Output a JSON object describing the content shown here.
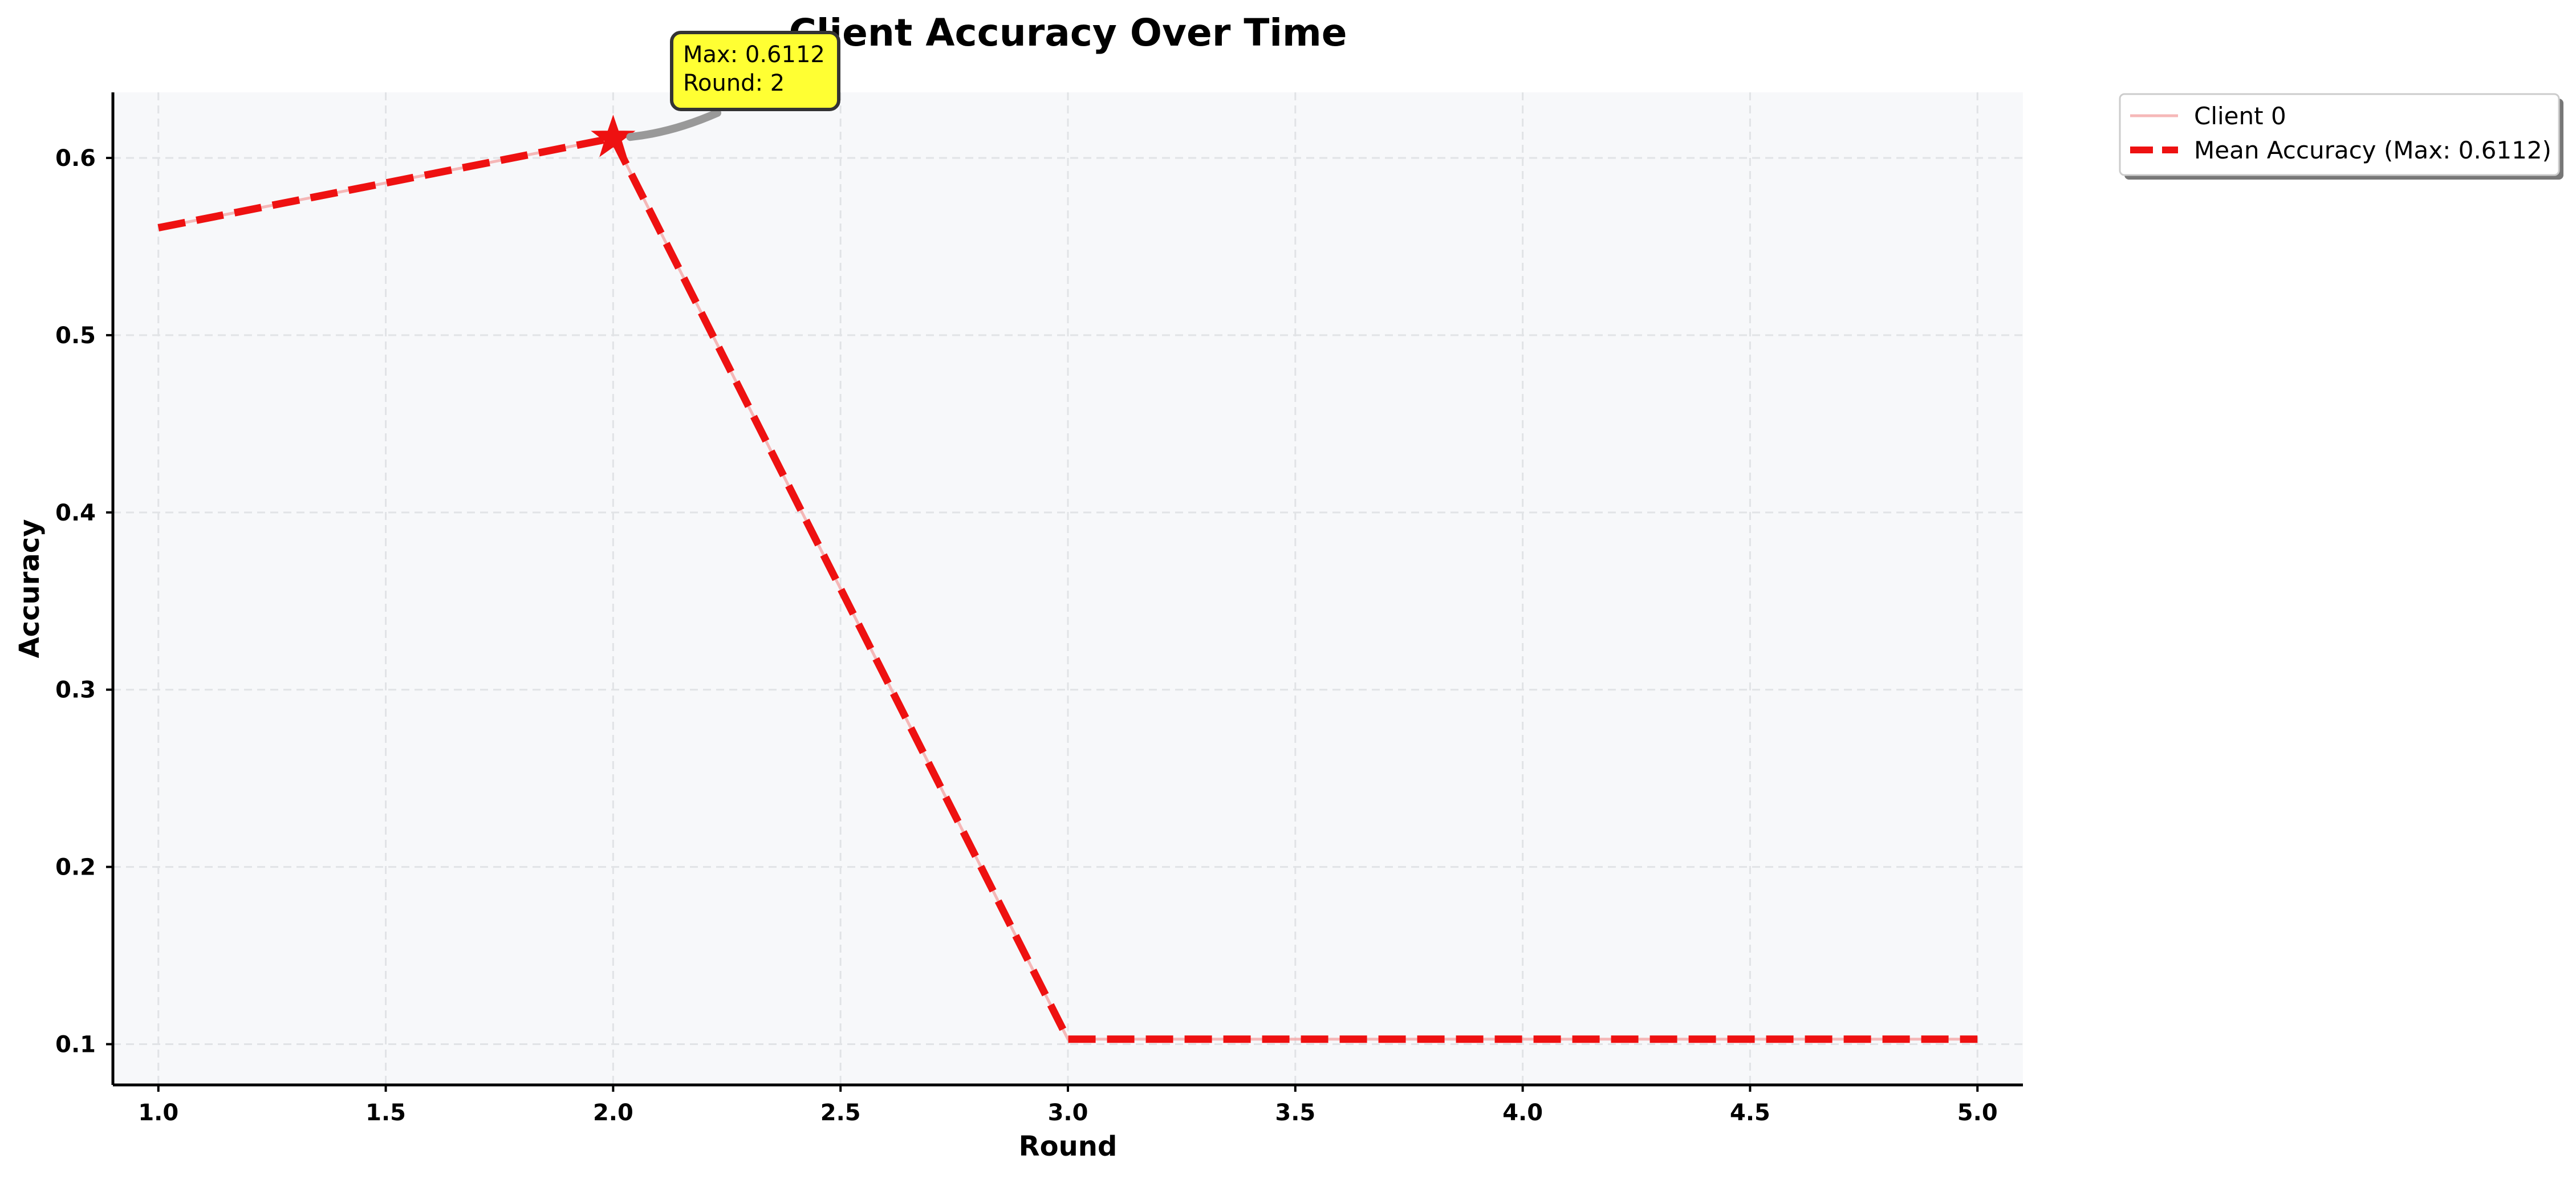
{
  "chart_data": {
    "type": "line",
    "title": "Client Accuracy Over Time",
    "xlabel": "Round",
    "ylabel": "Accuracy",
    "xlim": [
      0.9,
      5.1
    ],
    "ylim": [
      0.077,
      0.637
    ],
    "xticks": [
      1.0,
      1.5,
      2.0,
      2.5,
      3.0,
      3.5,
      4.0,
      4.5,
      5.0
    ],
    "xtick_labels": [
      "1.0",
      "1.5",
      "2.0",
      "2.5",
      "3.0",
      "3.5",
      "4.0",
      "4.5",
      "5.0"
    ],
    "yticks": [
      0.1,
      0.2,
      0.3,
      0.4,
      0.5,
      0.6
    ],
    "ytick_labels": [
      "0.1",
      "0.2",
      "0.3",
      "0.4",
      "0.5",
      "0.6"
    ],
    "grid": true,
    "legend_position": "outside top-right",
    "series": [
      {
        "name": "Client 0",
        "x": [
          1,
          2,
          3,
          4,
          5
        ],
        "values": [
          0.5606,
          0.6112,
          0.1028,
          0.1028,
          0.1028
        ],
        "color": "#f4a6a6",
        "style": "solid"
      },
      {
        "name": "Mean Accuracy (Max: 0.6112)",
        "x": [
          1,
          2,
          3,
          4,
          5
        ],
        "values": [
          0.5606,
          0.6112,
          0.1028,
          0.1028,
          0.1028
        ],
        "color": "#ee1111",
        "style": "dashed"
      }
    ],
    "max_point": {
      "x": 2,
      "y": 0.6112,
      "marker": "star",
      "color": "#ee1111"
    },
    "annotation": {
      "line1": "Max: 0.6112",
      "line2": "Round: 2",
      "box_color": "#ffff33"
    }
  }
}
